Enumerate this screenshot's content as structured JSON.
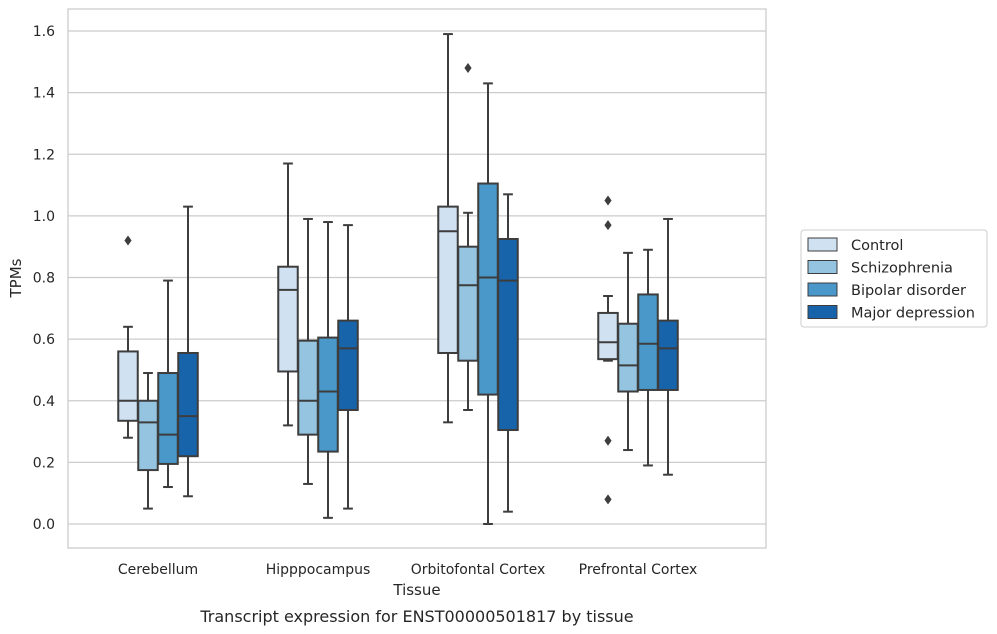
{
  "caption": "Transcript expression for ENST00000501817 by tissue",
  "chart_data": {
    "type": "box",
    "xlabel": "Tissue",
    "ylabel": "TPMs",
    "ylim": [
      -0.08,
      1.67
    ],
    "yticks": [
      0.0,
      0.2,
      0.4,
      0.6,
      0.8,
      1.0,
      1.2,
      1.4,
      1.6
    ],
    "ytick_labels": [
      "0.0",
      "0.2",
      "0.4",
      "0.6",
      "0.8",
      "1.0",
      "1.2",
      "1.4",
      "1.6"
    ],
    "grid": "horizontal",
    "legend_position": "right",
    "categories": [
      "Cerebellum",
      "Hipppocampus",
      "Orbitofontal Cortex",
      "Prefrontal Cortex"
    ],
    "series": [
      {
        "name": "Control",
        "color": "#d0e1f2",
        "boxes": [
          {
            "whisker_low": 0.28,
            "q1": 0.335,
            "median": 0.4,
            "q3": 0.56,
            "whisker_high": 0.64,
            "outliers": [
              0.92
            ]
          },
          {
            "whisker_low": 0.32,
            "q1": 0.495,
            "median": 0.76,
            "q3": 0.835,
            "whisker_high": 1.17,
            "outliers": []
          },
          {
            "whisker_low": 0.33,
            "q1": 0.555,
            "median": 0.95,
            "q3": 1.03,
            "whisker_high": 1.59,
            "outliers": []
          },
          {
            "whisker_low": 0.53,
            "q1": 0.535,
            "median": 0.59,
            "q3": 0.685,
            "whisker_high": 0.74,
            "outliers": [
              1.05,
              0.97,
              0.27,
              0.08
            ]
          }
        ]
      },
      {
        "name": "Schizophrenia",
        "color": "#94c4df",
        "boxes": [
          {
            "whisker_low": 0.05,
            "q1": 0.175,
            "median": 0.33,
            "q3": 0.4,
            "whisker_high": 0.49,
            "outliers": []
          },
          {
            "whisker_low": 0.13,
            "q1": 0.29,
            "median": 0.4,
            "q3": 0.595,
            "whisker_high": 0.99,
            "outliers": []
          },
          {
            "whisker_low": 0.37,
            "q1": 0.53,
            "median": 0.775,
            "q3": 0.9,
            "whisker_high": 1.01,
            "outliers": [
              1.48
            ]
          },
          {
            "whisker_low": 0.24,
            "q1": 0.43,
            "median": 0.515,
            "q3": 0.65,
            "whisker_high": 0.88,
            "outliers": []
          }
        ]
      },
      {
        "name": "Bipolar disorder",
        "color": "#4a98c9",
        "boxes": [
          {
            "whisker_low": 0.12,
            "q1": 0.195,
            "median": 0.29,
            "q3": 0.49,
            "whisker_high": 0.79,
            "outliers": []
          },
          {
            "whisker_low": 0.02,
            "q1": 0.235,
            "median": 0.43,
            "q3": 0.605,
            "whisker_high": 0.98,
            "outliers": []
          },
          {
            "whisker_low": 0.0,
            "q1": 0.42,
            "median": 0.8,
            "q3": 1.105,
            "whisker_high": 1.43,
            "outliers": []
          },
          {
            "whisker_low": 0.19,
            "q1": 0.435,
            "median": 0.585,
            "q3": 0.745,
            "whisker_high": 0.89,
            "outliers": []
          }
        ]
      },
      {
        "name": "Major depression",
        "color": "#1764ab",
        "boxes": [
          {
            "whisker_low": 0.09,
            "q1": 0.22,
            "median": 0.35,
            "q3": 0.555,
            "whisker_high": 1.03,
            "outliers": []
          },
          {
            "whisker_low": 0.05,
            "q1": 0.37,
            "median": 0.57,
            "q3": 0.66,
            "whisker_high": 0.97,
            "outliers": []
          },
          {
            "whisker_low": 0.04,
            "q1": 0.305,
            "median": 0.79,
            "q3": 0.925,
            "whisker_high": 1.07,
            "outliers": []
          },
          {
            "whisker_low": 0.16,
            "q1": 0.435,
            "median": 0.57,
            "q3": 0.66,
            "whisker_high": 0.99,
            "outliers": []
          }
        ]
      }
    ]
  }
}
